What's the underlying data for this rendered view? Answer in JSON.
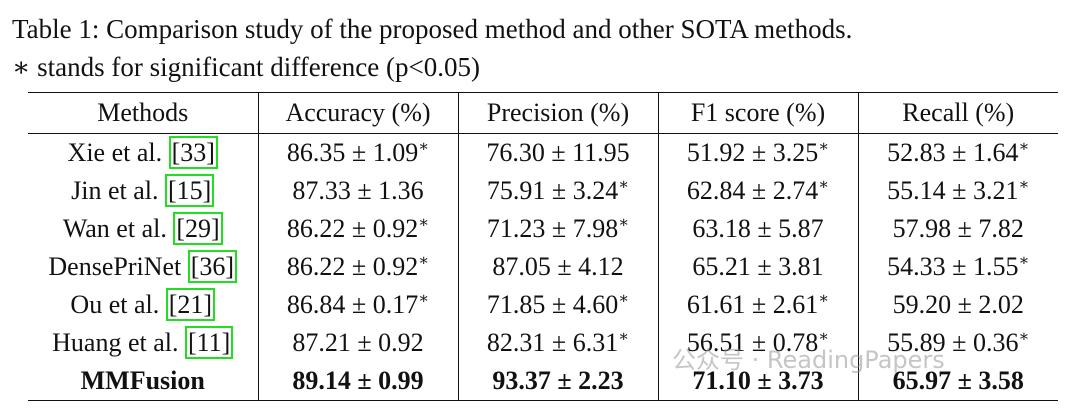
{
  "caption": {
    "label": "Table 1:",
    "text": "Comparison study of the proposed method and other SOTA methods.",
    "note": "∗ stands for significant difference (p<0.05)"
  },
  "table": {
    "header": [
      "Methods",
      "Accuracy (%)",
      "Precision (%)",
      "F1 score (%)",
      "Recall (%)"
    ],
    "rows": [
      {
        "method": "Xie et al.",
        "ref": "[33]",
        "cells": [
          {
            "value": "86.35 ± 1.09",
            "mark": "∗"
          },
          {
            "value": "76.30 ± 11.95"
          },
          {
            "value": "51.92 ± 3.25",
            "mark": "∗"
          },
          {
            "value": "52.83 ± 1.64",
            "mark": "∗"
          }
        ]
      },
      {
        "method": "Jin et al.",
        "ref": "[15]",
        "cells": [
          {
            "value": "87.33 ± 1.36"
          },
          {
            "value": "75.91 ± 3.24",
            "mark": "∗"
          },
          {
            "value": "62.84 ± 2.74",
            "mark": "∗"
          },
          {
            "value": "55.14 ± 3.21",
            "mark": "∗"
          }
        ]
      },
      {
        "method": "Wan et al.",
        "ref": "[29]",
        "cells": [
          {
            "value": "86.22 ± 0.92",
            "mark": "∗"
          },
          {
            "value": "71.23 ± 7.98",
            "mark": "∗"
          },
          {
            "value": "63.18 ± 5.87"
          },
          {
            "value": "57.98 ± 7.82"
          }
        ]
      },
      {
        "method": "DensePriNet",
        "ref": "[36]",
        "cells": [
          {
            "value": "86.22 ± 0.92",
            "mark": "∗"
          },
          {
            "value": "87.05 ± 4.12"
          },
          {
            "value": "65.21 ± 3.81"
          },
          {
            "value": "54.33 ± 1.55",
            "mark": "∗"
          }
        ]
      },
      {
        "method": "Ou et al.",
        "ref": "[21]",
        "cells": [
          {
            "value": "86.84 ± 0.17",
            "mark": "∗"
          },
          {
            "value": "71.85 ± 4.60",
            "mark": "∗"
          },
          {
            "value": "61.61 ± 2.61",
            "mark": "∗"
          },
          {
            "value": "59.20 ± 2.02"
          }
        ]
      },
      {
        "method": "Huang et al.",
        "ref": "[11]",
        "cells": [
          {
            "value": "87.21 ± 0.92"
          },
          {
            "value": "82.31 ± 6.31",
            "mark": "∗"
          },
          {
            "value": "56.51 ± 0.78",
            "mark": "∗"
          },
          {
            "value": "55.89 ± 0.36",
            "mark": "∗"
          }
        ]
      },
      {
        "method": "MMFusion",
        "cells": [
          {
            "value": "89.14 ± 0.99"
          },
          {
            "value": "93.37 ± 2.23"
          },
          {
            "value": "71.10 ± 3.73"
          },
          {
            "value": "65.97 ± 3.58"
          }
        ]
      }
    ]
  },
  "watermark": "公众号 · ReadingPapers"
}
